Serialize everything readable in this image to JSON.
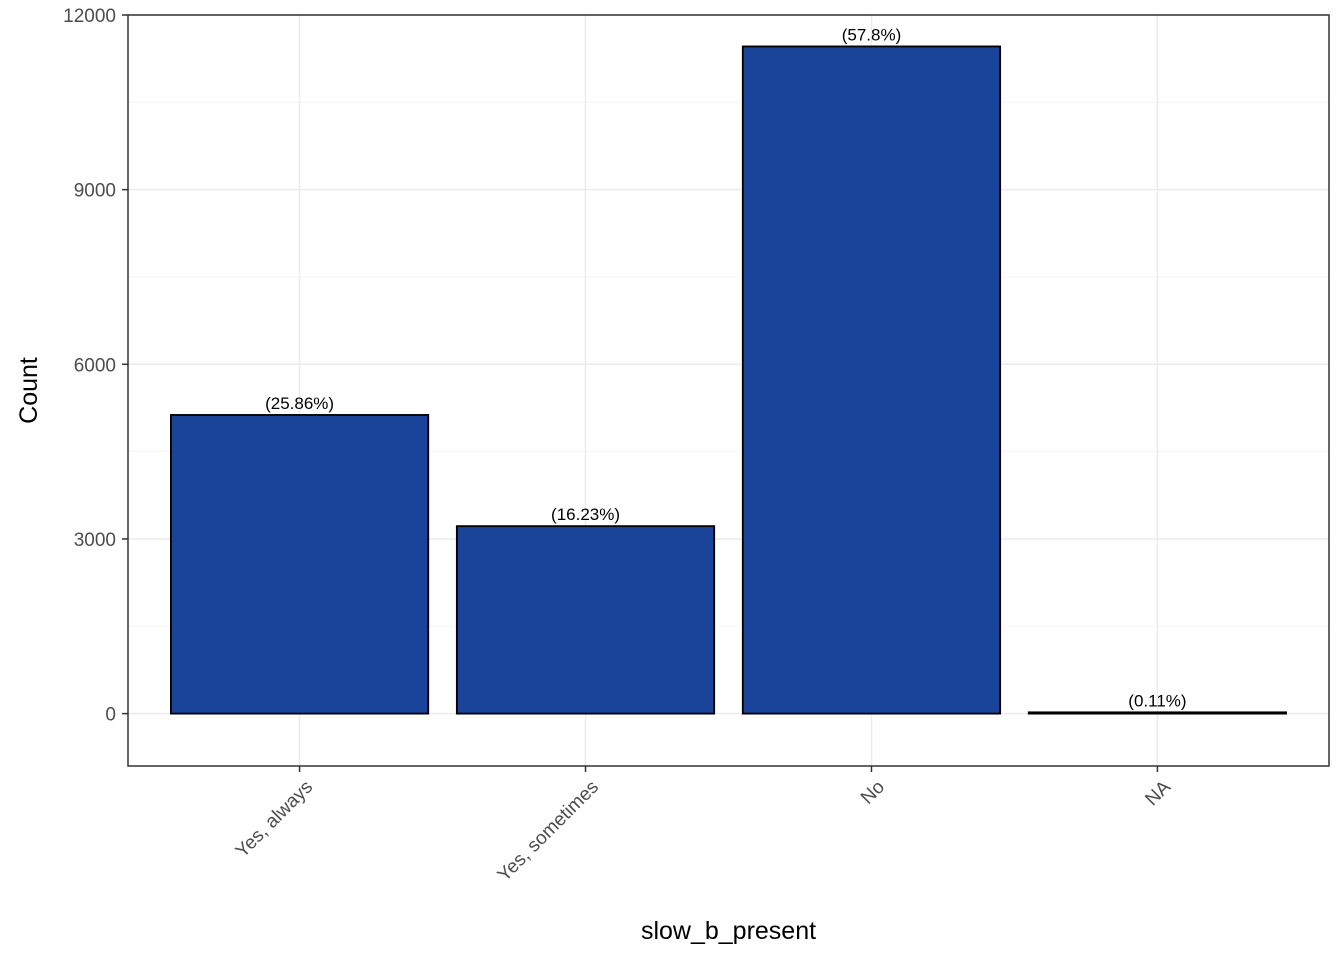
{
  "chart_data": {
    "type": "bar",
    "categories": [
      "Yes, always",
      "Yes, sometimes",
      "No",
      "NA"
    ],
    "values": [
      5130,
      3220,
      11460,
      22
    ],
    "bar_labels": [
      "(25.86%)",
      "(16.23%)",
      "(57.8%)",
      "(0.11%)"
    ],
    "xlabel": "slow_b_present",
    "ylabel": "Count",
    "ylim": [
      -900,
      12000
    ],
    "yticks": [
      0,
      3000,
      6000,
      9000,
      12000
    ],
    "ytick_labels": [
      "0",
      "3000",
      "6000",
      "9000",
      "12000"
    ],
    "grid": true,
    "legend": "none",
    "colors": {
      "bar_fill": "#1A4499",
      "bar_stroke": "#000000",
      "grid_major": "#EBEBEB",
      "grid_minor": "#F5F5F5",
      "panel_border": "#333333",
      "tick_text": "#4D4D4D"
    }
  }
}
